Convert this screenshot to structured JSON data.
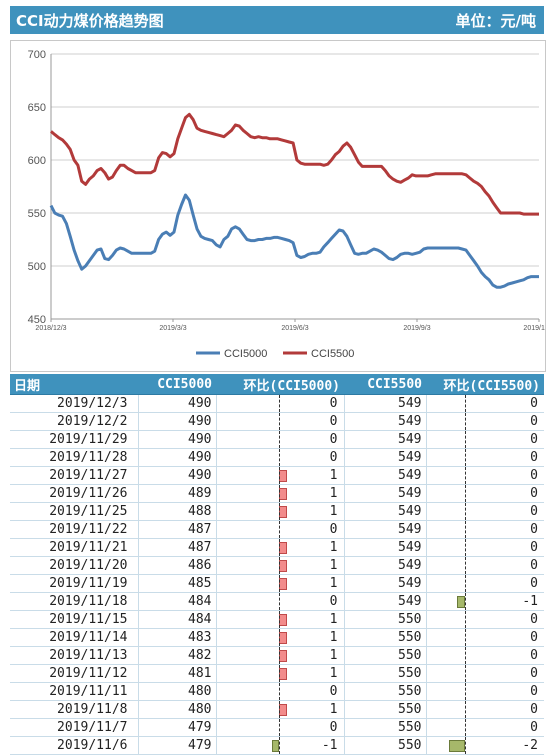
{
  "header": {
    "title": "CCI动力煤价格趋势图",
    "unit": "单位：元/吨"
  },
  "chart_data": {
    "type": "line",
    "ylim": [
      450,
      700
    ],
    "yticks": [
      "700",
      "650",
      "600",
      "550",
      "500",
      "450"
    ],
    "xticks": [
      "2018/12/3",
      "2019/3/3",
      "2019/6/3",
      "2019/9/3",
      "2019/12/3"
    ],
    "series": [
      {
        "name": "CCI5000",
        "color": "#4a7eb5",
        "values": [
          557,
          550,
          548,
          547,
          540,
          528,
          515,
          505,
          497,
          500,
          505,
          510,
          515,
          516,
          507,
          506,
          510,
          515,
          517,
          516,
          514,
          512,
          512,
          512,
          512,
          512,
          512,
          514,
          525,
          530,
          532,
          529,
          532,
          548,
          558,
          567,
          562,
          548,
          535,
          528,
          526,
          525,
          524,
          520,
          518,
          525,
          528,
          535,
          537,
          535,
          530,
          525,
          524,
          524,
          525,
          525,
          526,
          526,
          527,
          527,
          526,
          525,
          524,
          522,
          510,
          508,
          509,
          511,
          512,
          512,
          513,
          518,
          522,
          526,
          530,
          534,
          533,
          528,
          520,
          512,
          511,
          512,
          512,
          514,
          516,
          515,
          513,
          510,
          507,
          506,
          508,
          511,
          512,
          512,
          511,
          512,
          513,
          516,
          517,
          517,
          517,
          517,
          517,
          517,
          517,
          517,
          517,
          516,
          515,
          510,
          505,
          500,
          494,
          490,
          487,
          482,
          480,
          480,
          481,
          483,
          484,
          485,
          486,
          487,
          489,
          490,
          490,
          490
        ]
      },
      {
        "name": "CCI5500",
        "color": "#b23a3a",
        "values": [
          627,
          624,
          621,
          619,
          615,
          610,
          600,
          595,
          580,
          577,
          582,
          585,
          590,
          592,
          588,
          582,
          584,
          590,
          595,
          595,
          592,
          590,
          588,
          588,
          588,
          588,
          588,
          590,
          602,
          607,
          606,
          603,
          606,
          620,
          630,
          640,
          643,
          638,
          630,
          628,
          627,
          626,
          625,
          624,
          623,
          622,
          625,
          628,
          633,
          632,
          628,
          625,
          622,
          621,
          622,
          621,
          621,
          620,
          620,
          620,
          619,
          618,
          617,
          616,
          600,
          597,
          596,
          596,
          596,
          596,
          596,
          595,
          596,
          600,
          605,
          608,
          613,
          616,
          612,
          605,
          598,
          594,
          594,
          594,
          594,
          594,
          594,
          590,
          585,
          582,
          580,
          579,
          581,
          583,
          586,
          585,
          585,
          585,
          585,
          586,
          587,
          587,
          587,
          587,
          587,
          587,
          587,
          587,
          586,
          583,
          580,
          578,
          575,
          570,
          566,
          560,
          555,
          550,
          550,
          550,
          550,
          550,
          550,
          549,
          549,
          549,
          549,
          549
        ]
      }
    ]
  },
  "table": {
    "headers": [
      "日期",
      "CCI5000",
      "环比(CCI5000)",
      "CCI5500",
      "环比(CCI5500)"
    ],
    "rows": [
      {
        "date": "2019/12/3",
        "cci5000": "490",
        "chg5000": 0,
        "cci5500": "549",
        "chg5500": 0
      },
      {
        "date": "2019/12/2",
        "cci5000": "490",
        "chg5000": 0,
        "cci5500": "549",
        "chg5500": 0
      },
      {
        "date": "2019/11/29",
        "cci5000": "490",
        "chg5000": 0,
        "cci5500": "549",
        "chg5500": 0
      },
      {
        "date": "2019/11/28",
        "cci5000": "490",
        "chg5000": 0,
        "cci5500": "549",
        "chg5500": 0
      },
      {
        "date": "2019/11/27",
        "cci5000": "490",
        "chg5000": 1,
        "cci5500": "549",
        "chg5500": 0
      },
      {
        "date": "2019/11/26",
        "cci5000": "489",
        "chg5000": 1,
        "cci5500": "549",
        "chg5500": 0
      },
      {
        "date": "2019/11/25",
        "cci5000": "488",
        "chg5000": 1,
        "cci5500": "549",
        "chg5500": 0
      },
      {
        "date": "2019/11/22",
        "cci5000": "487",
        "chg5000": 0,
        "cci5500": "549",
        "chg5500": 0
      },
      {
        "date": "2019/11/21",
        "cci5000": "487",
        "chg5000": 1,
        "cci5500": "549",
        "chg5500": 0
      },
      {
        "date": "2019/11/20",
        "cci5000": "486",
        "chg5000": 1,
        "cci5500": "549",
        "chg5500": 0
      },
      {
        "date": "2019/11/19",
        "cci5000": "485",
        "chg5000": 1,
        "cci5500": "549",
        "chg5500": 0
      },
      {
        "date": "2019/11/18",
        "cci5000": "484",
        "chg5000": 0,
        "cci5500": "549",
        "chg5500": -1
      },
      {
        "date": "2019/11/15",
        "cci5000": "484",
        "chg5000": 1,
        "cci5500": "550",
        "chg5500": 0
      },
      {
        "date": "2019/11/14",
        "cci5000": "483",
        "chg5000": 1,
        "cci5500": "550",
        "chg5500": 0
      },
      {
        "date": "2019/11/13",
        "cci5000": "482",
        "chg5000": 1,
        "cci5500": "550",
        "chg5500": 0
      },
      {
        "date": "2019/11/12",
        "cci5000": "481",
        "chg5000": 1,
        "cci5500": "550",
        "chg5500": 0
      },
      {
        "date": "2019/11/11",
        "cci5000": "480",
        "chg5000": 0,
        "cci5500": "550",
        "chg5500": 0
      },
      {
        "date": "2019/11/8",
        "cci5000": "480",
        "chg5000": 1,
        "cci5500": "550",
        "chg5500": 0
      },
      {
        "date": "2019/11/7",
        "cci5000": "479",
        "chg5000": 0,
        "cci5500": "550",
        "chg5500": 0
      },
      {
        "date": "2019/11/6",
        "cci5000": "479",
        "chg5000": -1,
        "cci5500": "550",
        "chg5500": -2
      }
    ]
  }
}
